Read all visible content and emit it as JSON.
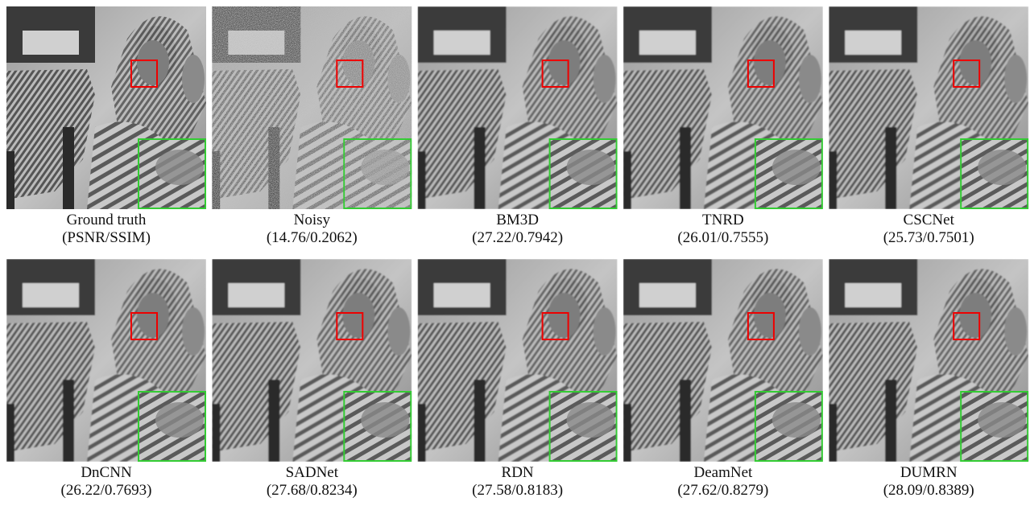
{
  "panels": [
    {
      "name": "Ground truth",
      "metrics": "(PSNR/SSIM)"
    },
    {
      "name": "Noisy",
      "metrics": "(14.76/0.2062)"
    },
    {
      "name": "BM3D",
      "metrics": "(27.22/0.7942)"
    },
    {
      "name": "TNRD",
      "metrics": "(26.01/0.7555)"
    },
    {
      "name": "CSCNet",
      "metrics": "(25.73/0.7501)"
    },
    {
      "name": "DnCNN",
      "metrics": "(26.22/0.7693)"
    },
    {
      "name": "SADNet",
      "metrics": "(27.68/0.8234)"
    },
    {
      "name": "RDN",
      "metrics": "(27.58/0.8183)"
    },
    {
      "name": "DeamNet",
      "metrics": "(27.62/0.8279)"
    },
    {
      "name": "DUMRN",
      "metrics": "(28.09/0.8389)"
    }
  ]
}
